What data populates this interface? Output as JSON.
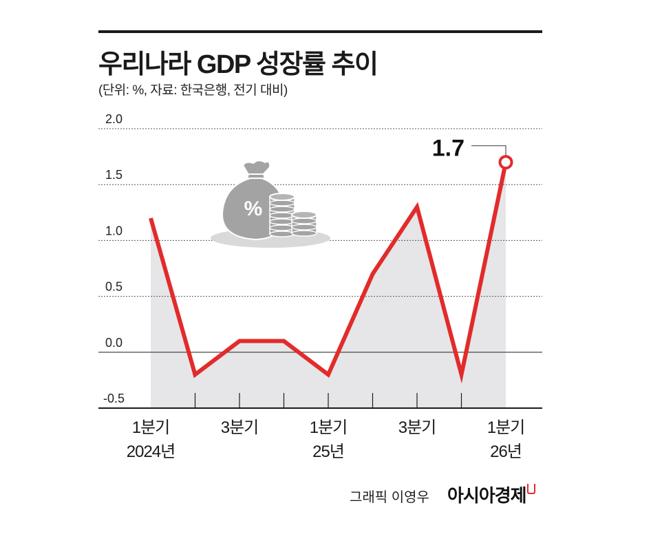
{
  "header": {
    "title": "우리나라 GDP 성장률 추이",
    "subtitle": "(단위: %, 자료: 한국은행, 전기 대비)"
  },
  "footer": {
    "credit": "그래픽 이영우",
    "brand": "아시아경제"
  },
  "colors": {
    "line": "#e22b2b",
    "area": "#e6e6e8",
    "grid": "#555555",
    "illustration": "#9a9a9a"
  },
  "icons": [
    "money-bag-icon",
    "coin-stack-icon"
  ],
  "chart_data": {
    "type": "area",
    "title": "우리나라 GDP 성장률 추이",
    "ylabel": "",
    "xlabel": "",
    "ylim": [
      -0.5,
      2.0
    ],
    "yticks": [
      "2.0",
      "1.5",
      "1.0",
      "0.5",
      "0.0",
      "-0.5"
    ],
    "grid": true,
    "x_labels": [
      {
        "index": 0,
        "line1": "1분기",
        "line2": "2024년"
      },
      {
        "index": 2,
        "line1": "3분기",
        "line2": ""
      },
      {
        "index": 4,
        "line1": "1분기",
        "line2": "25년"
      },
      {
        "index": 6,
        "line1": "3분기",
        "line2": ""
      },
      {
        "index": 8,
        "line1": "1분기",
        "line2": "26년"
      }
    ],
    "values": [
      1.2,
      -0.2,
      0.1,
      0.1,
      -0.2,
      0.7,
      1.3,
      -0.2,
      1.7
    ],
    "annotation": {
      "index": 8,
      "text": "1.7"
    }
  }
}
